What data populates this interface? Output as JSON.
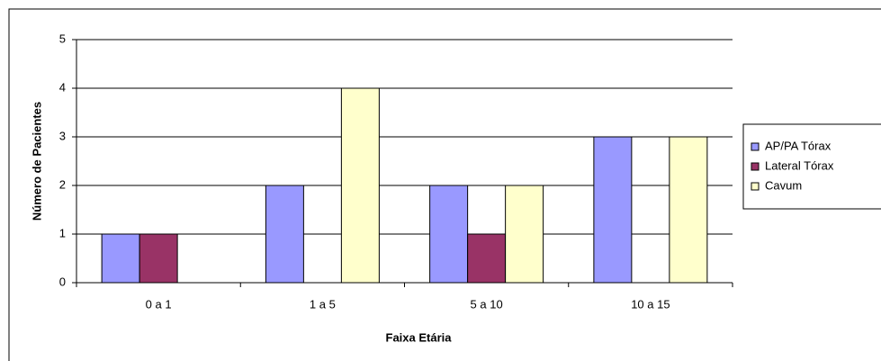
{
  "chart_data": {
    "type": "bar",
    "x_label": "Faixa Etária",
    "y_label": "Número de Pacientes",
    "categories": [
      "0 a 1",
      "1 a 5",
      "5 a 10",
      "10 a 15"
    ],
    "series": [
      {
        "name": "AP/PA Tórax",
        "color": "#9999ff",
        "values": [
          1,
          2,
          2,
          3
        ]
      },
      {
        "name": "Lateral Tórax",
        "color": "#993366",
        "values": [
          1,
          0,
          1,
          0
        ]
      },
      {
        "name": "Cavum",
        "color": "#ffffcc",
        "values": [
          0,
          4,
          2,
          3
        ]
      }
    ],
    "ylim": [
      0,
      5
    ],
    "yticks": [
      0,
      1,
      2,
      3,
      4,
      5
    ],
    "grid": true,
    "legend": "right"
  }
}
